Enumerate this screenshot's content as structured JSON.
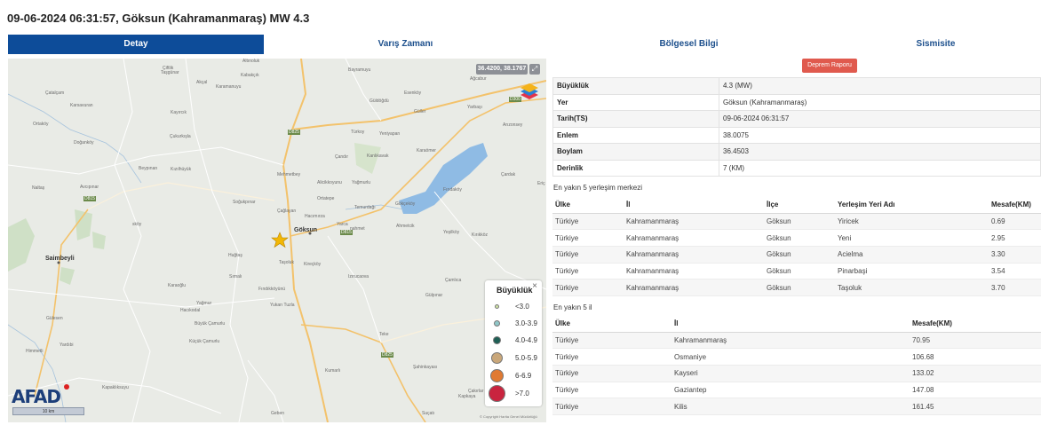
{
  "title": "09-06-2024 06:31:57, Göksun (Kahramanmaraş) MW 4.3",
  "tabs": [
    {
      "label": "Detay",
      "active": true
    },
    {
      "label": "Varış Zamanı",
      "active": false
    },
    {
      "label": "Bölgesel Bilgi",
      "active": false
    },
    {
      "label": "Sismisite",
      "active": false
    }
  ],
  "map": {
    "coords": "36.4200, 38.1767",
    "places": {
      "altinoluk": "Altınoluk",
      "ciftlik": "Çiftlik",
      "tasgunar": "Taşgünar",
      "akcal": "Akçal",
      "kabakcik": "Kabakçık",
      "karamanuyu": "Karamanuyu",
      "bayramuyu": "Bayramuyu",
      "agcabur": "Ağcabur",
      "catalcam": "Çatalçam",
      "karsavuran": "Karsavuran",
      "kayircik": "Kayırcık",
      "esenkoy": "Esenköy",
      "guldogdu": "Güldöğdü",
      "guller": "Güller",
      "yarbasi": "Yarbaşı",
      "arizonsey": "Arızonsey",
      "ortakoy": "Ortaköy",
      "dogankoy": "Doğanköy",
      "cukurkisla": "Çukurkışla",
      "turkoy": "Türkoy",
      "yeniyapan": "Yeniyapan",
      "kanlikavak": "Kanlıkavak",
      "candir": "Çandır",
      "karaomer": "Karaömer",
      "cardak": "Çardak",
      "beypinari": "Beypınarı",
      "kizilhuyuk": "Kızılhüyük",
      "mehmetbey": "Mehmetbey",
      "alicikkoyunu": "Alicikkoyunu",
      "yagmurlu": "Yağmurlu",
      "firidakoy": "Fırıdaköy",
      "eric": "Eriç",
      "naltas": "Naltaş",
      "avcipinar": "Avcıpınar",
      "ortatepe": "Ortatepe",
      "temurdagi": "Temurdağı",
      "gokcekoy": "Gökçeköy",
      "sogukpinar": "Soğukpınar",
      "caglayan": "Çağlayan",
      "hacimirza": "Hacımırza",
      "skoy": "sköy",
      "goksun": "Göksun",
      "yarca": "Yarca",
      "nahmet": "nahmet",
      "ahmetcik": "Ahmetcik",
      "yesilkoy": "Yeşilköy",
      "kirikkoz": "Kırıkköz",
      "saimbeyli": "Saimbeyli",
      "hugtas": "Huğtaş",
      "tasoluk": "Taşoluk",
      "kireckoy": "Kireçköy",
      "sirnali": "Sırnalı",
      "karaoglu": "Karaoğlu",
      "findikkoyunu": "Fındıkköyünü",
      "izirucaova": "Izırucaova",
      "camlica": "Çamlıca",
      "yukarituzla": "Yukarı Tuzla",
      "gulpinar": "Gülpınar",
      "yagmur": "Yağmur",
      "hacikodal": "Hacıkodal",
      "buyukcamurlu": "Büyük Çamurlu",
      "kucukcamurlu": "Küçük Çamurlu",
      "gulesen": "Gülesen",
      "yardibi": "Yardıbi",
      "himmetli": "Himmetli",
      "teke": "Teke",
      "kumarli": "Kumarlı",
      "sahinkayasi": "Şahinkayası",
      "kapakliksuyu": "Kapaklıksuyu",
      "geben": "Geben",
      "cakirlar": "Çakırlar",
      "kapkaya": "Kapkaya",
      "sucati": "Suçatı",
      "road_d825a": "D825",
      "road_d825b": "D825",
      "road_d815": "D815",
      "road_d815b": "D815",
      "road_d300": "D300"
    },
    "scale": "10 km",
    "attribution": "© Copyright Harita Genel Müdürlüğü",
    "logo": "AFAD",
    "legend": {
      "title": "Büyüklük",
      "close": "×",
      "items": [
        {
          "label": "<3.0",
          "color": "#cfe3a6"
        },
        {
          "label": "3.0-3.9",
          "color": "#8fc7c8"
        },
        {
          "label": "4.0-4.9",
          "color": "#1f5f55"
        },
        {
          "label": "5.0-5.9",
          "color": "#c9a77a"
        },
        {
          "label": "6-6.9",
          "color": "#e07a33"
        },
        {
          "label": ">7.0",
          "color": "#c9243f"
        }
      ]
    }
  },
  "report_button": "Deprem Raporu",
  "info": [
    {
      "k": "Büyüklük",
      "v": "4.3 (MW)"
    },
    {
      "k": "Yer",
      "v": "Göksun (Kahramanmaraş)"
    },
    {
      "k": "Tarih(TS)",
      "v": "09-06-2024 06:31:57"
    },
    {
      "k": "Enlem",
      "v": "38.0075"
    },
    {
      "k": "Boylam",
      "v": "36.4503"
    },
    {
      "k": "Derinlik",
      "v": "7 (KM)"
    }
  ],
  "settlements": {
    "title": "En yakın 5 yerleşim merkezi",
    "headers": [
      "Ülke",
      "İl",
      "İlçe",
      "Yerleşim Yeri Adı",
      "Mesafe(KM)"
    ],
    "rows": [
      [
        "Türkiye",
        "Kahramanmaraş",
        "Göksun",
        "Yiricek",
        "0.69"
      ],
      [
        "Türkiye",
        "Kahramanmaraş",
        "Göksun",
        "Yeni",
        "2.95"
      ],
      [
        "Türkiye",
        "Kahramanmaraş",
        "Göksun",
        "Acielma",
        "3.30"
      ],
      [
        "Türkiye",
        "Kahramanmaraş",
        "Göksun",
        "Pinarbaşi",
        "3.54"
      ],
      [
        "Türkiye",
        "Kahramanmaraş",
        "Göksun",
        "Taşoluk",
        "3.70"
      ]
    ]
  },
  "provinces": {
    "title": "En yakın 5 il",
    "headers": [
      "Ülke",
      "İl",
      "Mesafe(KM)"
    ],
    "rows": [
      [
        "Türkiye",
        "Kahramanmaraş",
        "70.95"
      ],
      [
        "Türkiye",
        "Osmaniye",
        "106.68"
      ],
      [
        "Türkiye",
        "Kayseri",
        "133.02"
      ],
      [
        "Türkiye",
        "Gaziantep",
        "147.08"
      ],
      [
        "Türkiye",
        "Kilis",
        "161.45"
      ]
    ]
  }
}
